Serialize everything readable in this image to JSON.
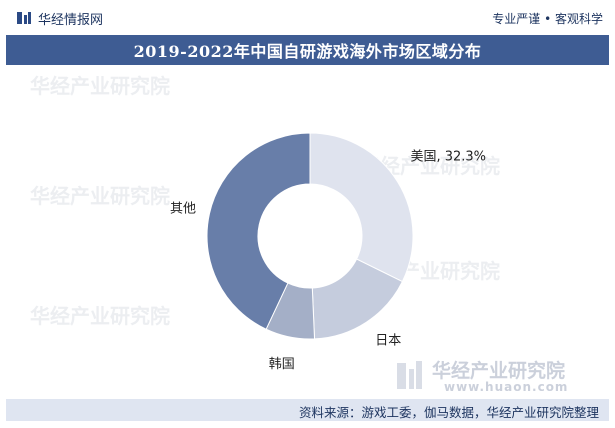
{
  "header": {
    "brand": "华经情报网",
    "tagline": "专业严谨 • 客观科学"
  },
  "title": "2019-2022年中国自研游戏海外市场区域分布",
  "footer": {
    "source": "资料来源：游戏工委，伽马数据，华经产业研究院整理"
  },
  "watermark": {
    "text": "华经产业研究院",
    "url": "www.huaon.com"
  },
  "colors": {
    "title_bar": "#3e5c93",
    "brand_text": "#1e3560",
    "source_bar": "#dfe5f1",
    "slice_usa": "#dfe3ee",
    "slice_japan": "#c5ccdd",
    "slice_korea": "#a4afc7",
    "slice_other": "#687ea9"
  },
  "chart_data": {
    "type": "pie",
    "donut": true,
    "title": "2019-2022年中国自研游戏海外市场区域分布",
    "slices": [
      {
        "label": "美国",
        "value": 32.3,
        "value_label": "32.3%"
      },
      {
        "label": "日本",
        "value": 17.0,
        "value_label": ""
      },
      {
        "label": "韩国",
        "value": 7.7,
        "value_label": ""
      },
      {
        "label": "其他",
        "value": 43.0,
        "value_label": ""
      }
    ],
    "start": "12 o'clock",
    "direction": "clockwise",
    "legend": "none"
  }
}
